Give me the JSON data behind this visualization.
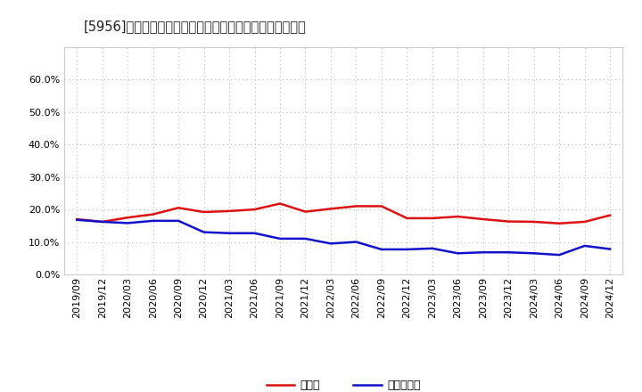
{
  "title": "[5956]　現須金、有利子負債の総資産に対する比率の推移",
  "x_labels": [
    "2019/09",
    "2019/12",
    "2020/03",
    "2020/06",
    "2020/09",
    "2020/12",
    "2021/03",
    "2021/06",
    "2021/09",
    "2021/12",
    "2022/03",
    "2022/06",
    "2022/09",
    "2022/12",
    "2023/03",
    "2023/06",
    "2023/09",
    "2023/12",
    "2024/03",
    "2024/06",
    "2024/09",
    "2024/12"
  ],
  "cash": [
    0.17,
    0.162,
    0.175,
    0.185,
    0.205,
    0.192,
    0.195,
    0.2,
    0.218,
    0.193,
    0.202,
    0.21,
    0.21,
    0.173,
    0.173,
    0.178,
    0.17,
    0.163,
    0.162,
    0.157,
    0.162,
    0.182
  ],
  "interest_bearing_debt": [
    0.168,
    0.162,
    0.158,
    0.165,
    0.165,
    0.13,
    0.127,
    0.127,
    0.11,
    0.11,
    0.095,
    0.1,
    0.077,
    0.077,
    0.08,
    0.065,
    0.068,
    0.068,
    0.065,
    0.06,
    0.088,
    0.078
  ],
  "cash_color": "#dd1111",
  "debt_color": "#1111cc",
  "legend_cash": "現須金",
  "legend_debt": "有利子負債",
  "ylim": [
    0,
    0.7
  ],
  "yticks": [
    0.0,
    0.1,
    0.2,
    0.3,
    0.4,
    0.5,
    0.6
  ],
  "background_color": "#ffffff",
  "grid_color": "#bbbbbb"
}
